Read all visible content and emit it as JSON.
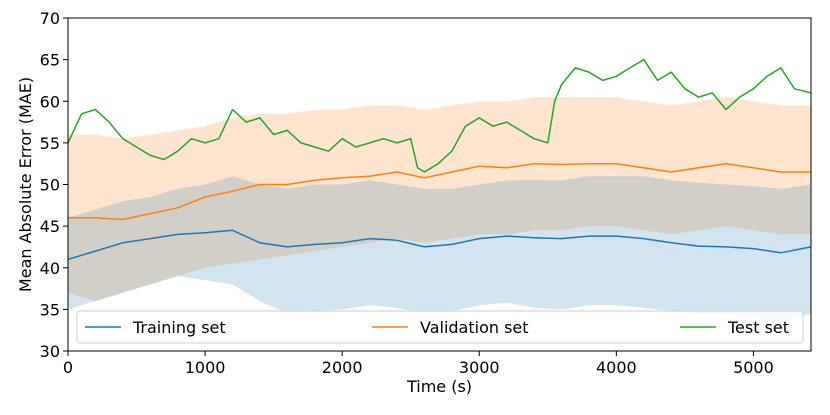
{
  "chart_data": {
    "type": "line",
    "title": "",
    "xlabel": "Time (s)",
    "ylabel": "Mean Absolute Error (MAE)",
    "xlim": [
      0,
      5420
    ],
    "ylim": [
      30,
      70
    ],
    "xticks": [
      0,
      1000,
      2000,
      3000,
      4000,
      5000
    ],
    "yticks": [
      30,
      35,
      40,
      45,
      50,
      55,
      60,
      65,
      70
    ],
    "xtick_labels": [
      "0",
      "1000",
      "2000",
      "3000",
      "4000",
      "5000"
    ],
    "ytick_labels": [
      "30",
      "35",
      "40",
      "45",
      "50",
      "55",
      "60",
      "65",
      "70"
    ],
    "grid": false,
    "legend_position": "bottom",
    "series": [
      {
        "name": "Training set",
        "color": "#1f77b4",
        "band_color": "#1f77b4",
        "x": [
          0,
          200,
          400,
          600,
          800,
          1000,
          1200,
          1400,
          1600,
          1800,
          2000,
          2200,
          2400,
          2600,
          2800,
          3000,
          3200,
          3400,
          3600,
          3800,
          4000,
          4200,
          4400,
          4600,
          4800,
          5000,
          5200,
          5420
        ],
        "values": [
          41.0,
          42.0,
          43.0,
          43.5,
          44.0,
          44.2,
          44.5,
          43.0,
          42.5,
          42.8,
          43.0,
          43.5,
          43.3,
          42.5,
          42.8,
          43.5,
          43.8,
          43.6,
          43.5,
          43.8,
          43.8,
          43.5,
          43.0,
          42.6,
          42.5,
          42.3,
          41.8,
          42.5
        ],
        "band_lower": [
          35.0,
          36.0,
          37.0,
          38.0,
          39.0,
          38.5,
          38.0,
          36.0,
          34.5,
          34.8,
          35.0,
          35.5,
          35.2,
          34.5,
          34.8,
          35.5,
          35.8,
          35.2,
          35.0,
          35.5,
          35.5,
          35.2,
          34.8,
          34.5,
          34.5,
          34.0,
          33.5,
          34.5
        ],
        "band_upper": [
          46.0,
          47.0,
          48.0,
          48.5,
          49.5,
          50.0,
          51.0,
          50.0,
          49.5,
          50.0,
          50.0,
          50.5,
          50.0,
          49.5,
          49.5,
          50.0,
          50.5,
          50.5,
          50.5,
          51.0,
          51.0,
          51.0,
          50.5,
          50.2,
          50.0,
          49.8,
          49.5,
          50.0
        ]
      },
      {
        "name": "Validation set",
        "color": "#ff7f0e",
        "band_color": "#ff7f0e",
        "x": [
          0,
          200,
          400,
          600,
          800,
          1000,
          1200,
          1400,
          1600,
          1800,
          2000,
          2200,
          2400,
          2600,
          2800,
          3000,
          3200,
          3400,
          3600,
          3800,
          4000,
          4200,
          4400,
          4600,
          4800,
          5000,
          5200,
          5420
        ],
        "values": [
          46.0,
          46.0,
          45.8,
          46.5,
          47.2,
          48.5,
          49.2,
          50.0,
          50.0,
          50.5,
          50.8,
          51.0,
          51.5,
          50.8,
          51.5,
          52.2,
          52.0,
          52.5,
          52.4,
          52.5,
          52.5,
          52.0,
          51.5,
          52.0,
          52.5,
          52.0,
          51.5,
          51.5
        ],
        "band_lower": [
          37.0,
          36.0,
          37.0,
          38.0,
          39.0,
          40.0,
          40.5,
          41.0,
          41.5,
          42.0,
          42.5,
          43.0,
          43.5,
          43.0,
          43.5,
          44.0,
          44.0,
          44.5,
          44.5,
          45.0,
          45.0,
          44.5,
          44.0,
          44.5,
          45.0,
          44.5,
          44.0,
          44.0
        ],
        "band_upper": [
          56.0,
          56.0,
          55.5,
          56.0,
          56.5,
          57.0,
          58.0,
          58.5,
          58.5,
          59.0,
          59.0,
          59.5,
          59.5,
          59.0,
          59.5,
          60.0,
          60.0,
          60.5,
          60.5,
          60.5,
          60.5,
          60.0,
          59.5,
          60.0,
          60.5,
          60.0,
          59.5,
          59.5
        ]
      },
      {
        "name": "Test set",
        "color": "#2ca02c",
        "x": [
          0,
          100,
          200,
          300,
          400,
          500,
          600,
          700,
          800,
          900,
          1000,
          1100,
          1200,
          1300,
          1400,
          1500,
          1600,
          1700,
          1800,
          1900,
          2000,
          2100,
          2200,
          2300,
          2400,
          2500,
          2550,
          2600,
          2700,
          2800,
          2900,
          3000,
          3100,
          3200,
          3300,
          3400,
          3500,
          3550,
          3600,
          3700,
          3800,
          3900,
          4000,
          4100,
          4200,
          4300,
          4400,
          4500,
          4600,
          4700,
          4800,
          4900,
          5000,
          5100,
          5200,
          5300,
          5420
        ],
        "values": [
          55.0,
          58.5,
          59.0,
          57.5,
          55.5,
          54.5,
          53.5,
          53.0,
          54.0,
          55.5,
          55.0,
          55.5,
          59.0,
          57.5,
          58.0,
          56.0,
          56.5,
          55.0,
          54.5,
          54.0,
          55.5,
          54.5,
          55.0,
          55.5,
          55.0,
          55.5,
          52.0,
          51.5,
          52.5,
          54.0,
          57.0,
          58.0,
          57.0,
          57.5,
          56.5,
          55.5,
          55.0,
          60.0,
          62.0,
          64.0,
          63.5,
          62.5,
          63.0,
          64.0,
          65.0,
          62.5,
          63.5,
          61.5,
          60.5,
          61.0,
          59.0,
          60.5,
          61.5,
          63.0,
          64.0,
          61.5,
          61.0
        ]
      }
    ]
  }
}
